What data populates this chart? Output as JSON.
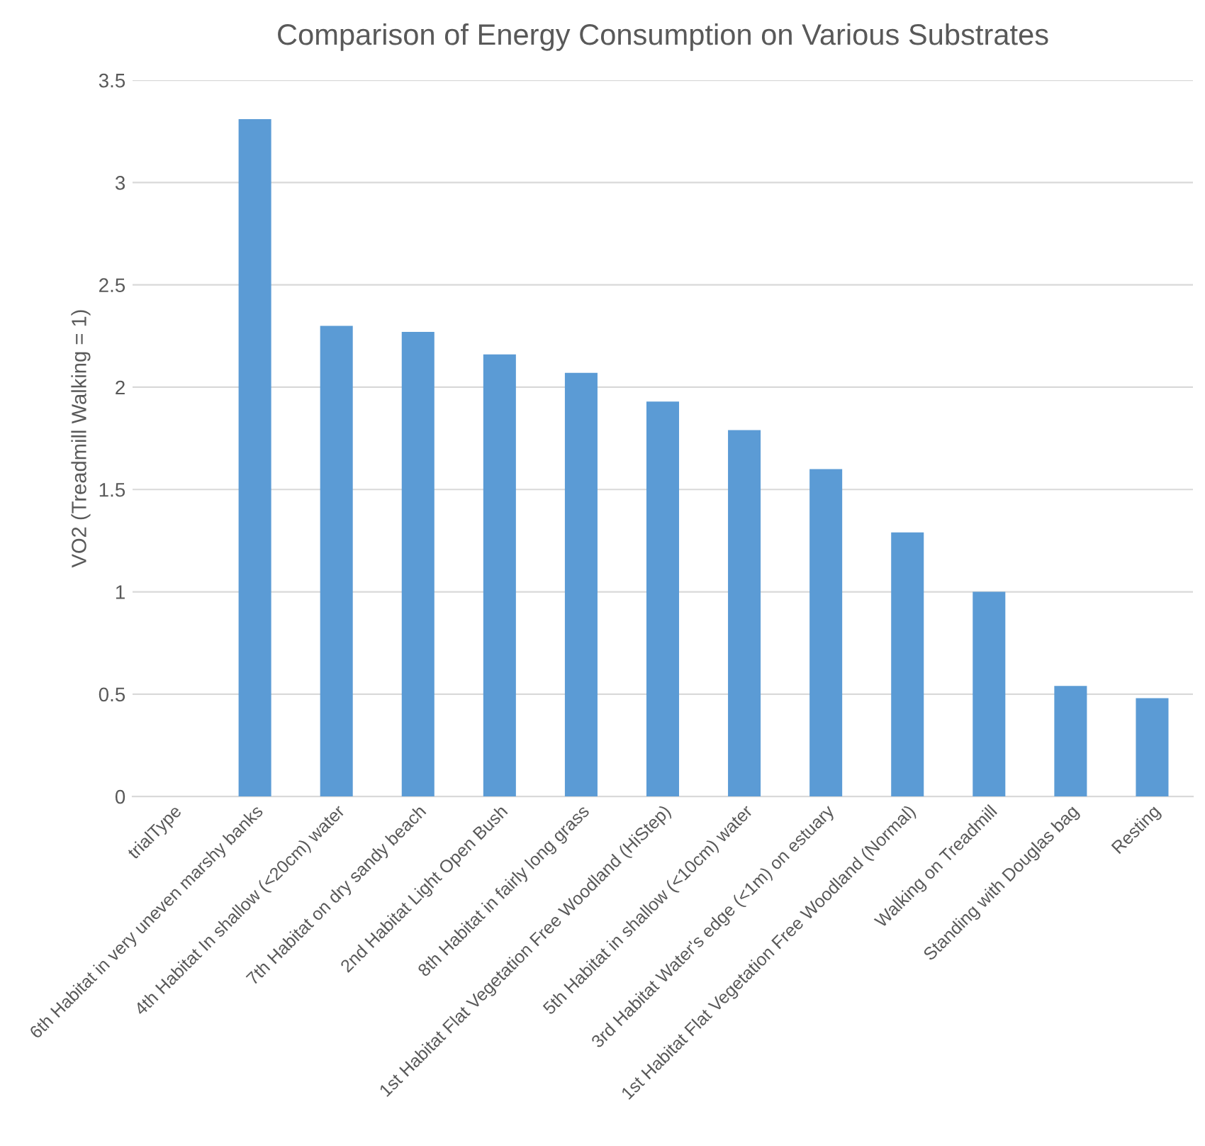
{
  "chart_data": {
    "type": "bar",
    "title": "Comparison of Energy Consumption on Various Substrates",
    "ylabel": "VO2 (Treadmill Walking = 1)",
    "categories": [
      "trialType",
      "6th Habitat in very uneven marshy banks",
      "4th Habitat In shallow (<20cm) water",
      "7th Habitat on dry sandy beach",
      "2nd Habitat Light Open Bush",
      "8th Habitat in fairly long grass",
      "1st Habitat Flat Vegetation Free Woodland (HiStep)",
      "5th Habitat in shallow (<10cm) water",
      "3rd Habitat Water's edge (<1m) on estuary",
      "1st Habitat Flat Vegetation Free Woodland (Normal)",
      "Walking on Treadmill",
      "Standing with Douglas bag",
      "Resting"
    ],
    "values": [
      null,
      3.31,
      2.3,
      2.27,
      2.16,
      2.07,
      1.93,
      1.79,
      1.6,
      1.29,
      1.0,
      0.54,
      0.48
    ],
    "color": "#5b9bd5",
    "ylim": [
      0,
      3.5
    ],
    "yticks": [
      0,
      0.5,
      1,
      1.5,
      2,
      2.5,
      3,
      3.5
    ],
    "grid": "y"
  }
}
